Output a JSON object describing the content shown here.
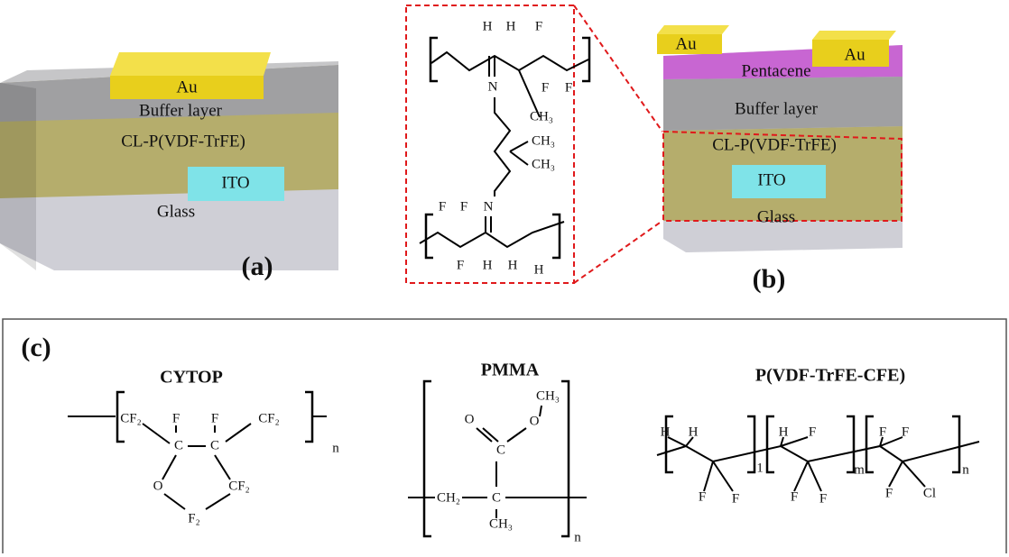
{
  "panel_a": {
    "label": "(a)",
    "layers": {
      "au": "Au",
      "buffer": "Buffer layer",
      "dielectric": "CL-P(VDF-TrFE)",
      "ito": "ITO",
      "glass": "Glass"
    }
  },
  "crosslinker": {
    "atoms": [
      "H",
      "H",
      "F",
      "F",
      "F",
      "N",
      "CH₃",
      "CH₃",
      "CH₃",
      "N",
      "F",
      "F",
      "F",
      "H",
      "H",
      "H"
    ]
  },
  "panel_b": {
    "label": "(b)",
    "layers": {
      "au_left": "Au",
      "au_right": "Au",
      "semiconductor": "Pentacene",
      "buffer": "Buffer layer",
      "dielectric": "CL-P(VDF-TrFE)",
      "ito": "ITO",
      "glass": "Glass"
    }
  },
  "panel_c": {
    "label": "(c)",
    "cytop": {
      "name": "CYTOP",
      "atoms": [
        "CF₂",
        "F",
        "F",
        "CF₂",
        "C",
        "C",
        "O",
        "CF₂",
        "F₂",
        "n"
      ]
    },
    "pmma": {
      "name": "PMMA",
      "atoms": [
        "CH₃",
        "O",
        "O",
        "C",
        "CH₂",
        "C",
        "CH₃",
        "n"
      ]
    },
    "terpolymer": {
      "name": "P(VDF-TrFE-CFE)",
      "atoms": [
        "H",
        "H",
        "F",
        "F",
        "1",
        "H",
        "F",
        "F",
        "F",
        "m",
        "F",
        "F",
        "F",
        "Cl",
        "n"
      ]
    }
  }
}
